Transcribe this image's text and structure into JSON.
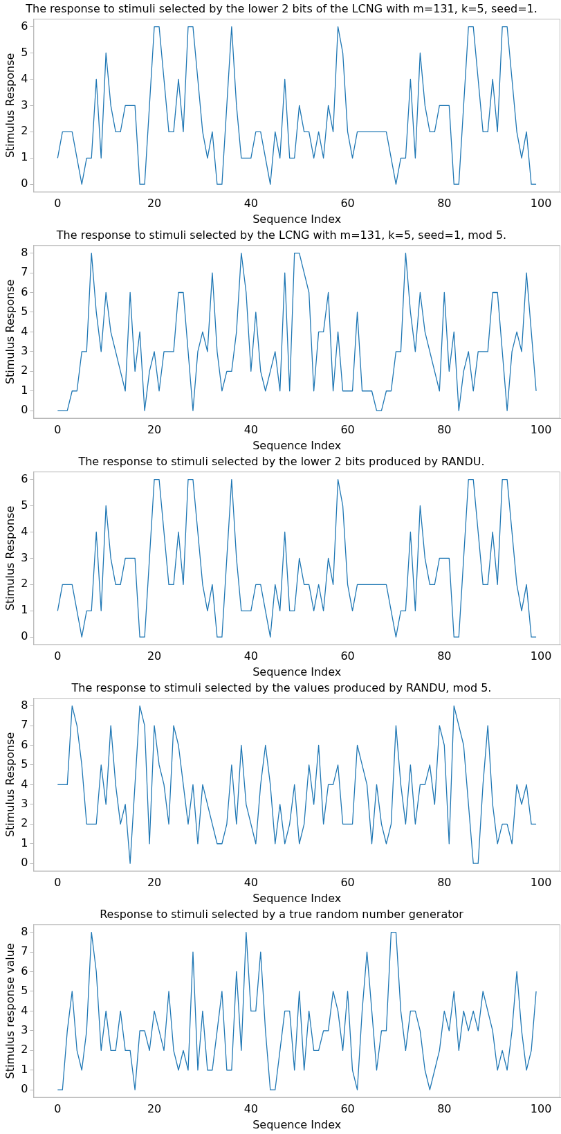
{
  "chart_data": [
    {
      "type": "line",
      "title": "The response to stimuli selected by the lower 2 bits of the LCNG with m=131, k=5, seed=1.",
      "x": [
        0,
        1,
        2,
        3,
        4,
        5,
        6,
        7,
        8,
        9,
        10,
        11,
        12,
        13,
        14,
        15,
        16,
        17,
        18,
        19,
        20,
        21,
        22,
        23,
        24,
        25,
        26,
        27,
        28,
        29,
        30,
        31,
        32,
        33,
        34,
        35,
        36,
        37,
        38,
        39,
        40,
        41,
        42,
        43,
        44,
        45,
        46,
        47,
        48,
        49,
        50,
        51,
        52,
        53,
        54,
        55,
        56,
        57,
        58,
        59,
        60,
        61,
        62,
        63,
        64,
        65,
        66,
        67,
        68,
        69,
        70,
        71,
        72,
        73,
        74,
        75,
        76,
        77,
        78,
        79,
        80,
        81,
        82,
        83,
        84,
        85,
        86,
        87,
        88,
        89,
        90,
        91,
        92,
        93,
        94,
        95,
        96,
        97,
        98,
        99
      ],
      "xlabel": "Sequence Index",
      "ylabel": "Stimulus Response",
      "color": "#1f77b4",
      "xlim": [
        -5,
        104
      ],
      "xticks": [
        0,
        20,
        40,
        60,
        80,
        100
      ],
      "ylim": [
        -0.3,
        6.3
      ],
      "yticks": [
        0,
        1,
        2,
        3,
        4,
        5,
        6
      ],
      "values": [
        1,
        2,
        2,
        2,
        1,
        0,
        1,
        1,
        4,
        1,
        5,
        3,
        2,
        2,
        3,
        3,
        3,
        0,
        0,
        3,
        6,
        6,
        4,
        2,
        2,
        4,
        2,
        6,
        6,
        4,
        2,
        1,
        2,
        0,
        0,
        3,
        6,
        3,
        1,
        1,
        1,
        2,
        2,
        1,
        0,
        2,
        1,
        4,
        1,
        1,
        3,
        2,
        2,
        1,
        2,
        1,
        3,
        2,
        6,
        5,
        2,
        1,
        2,
        2,
        2,
        2,
        2,
        2,
        2,
        1,
        0,
        1,
        1,
        4,
        1,
        5,
        3,
        2,
        2,
        3,
        3,
        3,
        0,
        0,
        3,
        6,
        6,
        4,
        2,
        2,
        4,
        2,
        6,
        6,
        4,
        2,
        1,
        2,
        0,
        0
      ]
    },
    {
      "type": "line",
      "title": "The response to stimuli selected by the LCNG with m=131, k=5, seed=1, mod 5.",
      "x": [
        0,
        1,
        2,
        3,
        4,
        5,
        6,
        7,
        8,
        9,
        10,
        11,
        12,
        13,
        14,
        15,
        16,
        17,
        18,
        19,
        20,
        21,
        22,
        23,
        24,
        25,
        26,
        27,
        28,
        29,
        30,
        31,
        32,
        33,
        34,
        35,
        36,
        37,
        38,
        39,
        40,
        41,
        42,
        43,
        44,
        45,
        46,
        47,
        48,
        49,
        50,
        51,
        52,
        53,
        54,
        55,
        56,
        57,
        58,
        59,
        60,
        61,
        62,
        63,
        64,
        65,
        66,
        67,
        68,
        69,
        70,
        71,
        72,
        73,
        74,
        75,
        76,
        77,
        78,
        79,
        80,
        81,
        82,
        83,
        84,
        85,
        86,
        87,
        88,
        89,
        90,
        91,
        92,
        93,
        94,
        95,
        96,
        97,
        98,
        99
      ],
      "xlabel": "Sequence Index",
      "ylabel": "Stimulus Response",
      "color": "#1f77b4",
      "xlim": [
        -5,
        104
      ],
      "xticks": [
        0,
        20,
        40,
        60,
        80,
        100
      ],
      "ylim": [
        -0.4,
        8.4
      ],
      "yticks": [
        0,
        1,
        2,
        3,
        4,
        5,
        6,
        7,
        8
      ],
      "values": [
        0,
        0,
        0,
        1,
        1,
        3,
        3,
        8,
        5,
        3,
        6,
        4,
        3,
        2,
        1,
        6,
        2,
        4,
        0,
        2,
        3,
        1,
        3,
        3,
        3,
        6,
        6,
        3,
        0,
        3,
        4,
        3,
        7,
        3,
        1,
        2,
        2,
        4,
        8,
        6,
        2,
        5,
        2,
        1,
        2,
        3,
        1,
        7,
        1,
        8,
        8,
        7,
        6,
        1,
        4,
        4,
        6,
        1,
        4,
        1,
        1,
        1,
        5,
        1,
        1,
        1,
        0,
        0,
        1,
        1,
        3,
        3,
        8,
        5,
        3,
        6,
        4,
        3,
        2,
        1,
        6,
        2,
        4,
        0,
        2,
        3,
        1,
        3,
        3,
        3,
        6,
        6,
        3,
        0,
        3,
        4,
        3,
        7,
        4,
        1
      ]
    },
    {
      "type": "line",
      "title": "The response to stimuli selected by the lower 2 bits produced by RANDU.",
      "x": [
        0,
        1,
        2,
        3,
        4,
        5,
        6,
        7,
        8,
        9,
        10,
        11,
        12,
        13,
        14,
        15,
        16,
        17,
        18,
        19,
        20,
        21,
        22,
        23,
        24,
        25,
        26,
        27,
        28,
        29,
        30,
        31,
        32,
        33,
        34,
        35,
        36,
        37,
        38,
        39,
        40,
        41,
        42,
        43,
        44,
        45,
        46,
        47,
        48,
        49,
        50,
        51,
        52,
        53,
        54,
        55,
        56,
        57,
        58,
        59,
        60,
        61,
        62,
        63,
        64,
        65,
        66,
        67,
        68,
        69,
        70,
        71,
        72,
        73,
        74,
        75,
        76,
        77,
        78,
        79,
        80,
        81,
        82,
        83,
        84,
        85,
        86,
        87,
        88,
        89,
        90,
        91,
        92,
        93,
        94,
        95,
        96,
        97,
        98,
        99
      ],
      "xlabel": "Sequence Index",
      "ylabel": "Stimulus Response",
      "color": "#1f77b4",
      "xlim": [
        -5,
        104
      ],
      "xticks": [
        0,
        20,
        40,
        60,
        80,
        100
      ],
      "ylim": [
        -0.3,
        6.3
      ],
      "yticks": [
        0,
        1,
        2,
        3,
        4,
        5,
        6
      ],
      "values": [
        1,
        2,
        2,
        2,
        1,
        0,
        1,
        1,
        4,
        1,
        5,
        3,
        2,
        2,
        3,
        3,
        3,
        0,
        0,
        3,
        6,
        6,
        4,
        2,
        2,
        4,
        2,
        6,
        6,
        4,
        2,
        1,
        2,
        0,
        0,
        3,
        6,
        3,
        1,
        1,
        1,
        2,
        2,
        1,
        0,
        2,
        1,
        4,
        1,
        1,
        3,
        2,
        2,
        1,
        2,
        1,
        3,
        2,
        6,
        5,
        2,
        1,
        2,
        2,
        2,
        2,
        2,
        2,
        2,
        1,
        0,
        1,
        1,
        4,
        1,
        5,
        3,
        2,
        2,
        3,
        3,
        3,
        0,
        0,
        3,
        6,
        6,
        4,
        2,
        2,
        4,
        2,
        6,
        6,
        4,
        2,
        1,
        2,
        0,
        0
      ]
    },
    {
      "type": "line",
      "title": "The response to stimuli selected by the values produced by RANDU, mod 5.",
      "x": [
        0,
        1,
        2,
        3,
        4,
        5,
        6,
        7,
        8,
        9,
        10,
        11,
        12,
        13,
        14,
        15,
        16,
        17,
        18,
        19,
        20,
        21,
        22,
        23,
        24,
        25,
        26,
        27,
        28,
        29,
        30,
        31,
        32,
        33,
        34,
        35,
        36,
        37,
        38,
        39,
        40,
        41,
        42,
        43,
        44,
        45,
        46,
        47,
        48,
        49,
        50,
        51,
        52,
        53,
        54,
        55,
        56,
        57,
        58,
        59,
        60,
        61,
        62,
        63,
        64,
        65,
        66,
        67,
        68,
        69,
        70,
        71,
        72,
        73,
        74,
        75,
        76,
        77,
        78,
        79,
        80,
        81,
        82,
        83,
        84,
        85,
        86,
        87,
        88,
        89,
        90,
        91,
        92,
        93,
        94,
        95,
        96,
        97,
        98,
        99
      ],
      "xlabel": "Sequence Index",
      "ylabel": "Stimulus Response",
      "color": "#1f77b4",
      "xlim": [
        -5,
        104
      ],
      "xticks": [
        0,
        20,
        40,
        60,
        80,
        100
      ],
      "ylim": [
        -0.4,
        8.4
      ],
      "yticks": [
        0,
        1,
        2,
        3,
        4,
        5,
        6,
        7,
        8
      ],
      "values": [
        4,
        4,
        4,
        8,
        7,
        5,
        2,
        2,
        2,
        5,
        3,
        7,
        4,
        2,
        3,
        0,
        4,
        8,
        7,
        1,
        7,
        5,
        4,
        2,
        7,
        6,
        4,
        2,
        4,
        1,
        4,
        3,
        2,
        1,
        1,
        2,
        5,
        2,
        6,
        3,
        2,
        1,
        4,
        6,
        4,
        1,
        3,
        1,
        2,
        4,
        1,
        2,
        5,
        3,
        6,
        2,
        4,
        4,
        5,
        2,
        2,
        2,
        6,
        5,
        4,
        1,
        4,
        2,
        1,
        2,
        7,
        4,
        2,
        5,
        2,
        4,
        4,
        5,
        3,
        7,
        6,
        1,
        8,
        7,
        6,
        3,
        0,
        0,
        4,
        7,
        3,
        1,
        2,
        2,
        1,
        4,
        3,
        4,
        2,
        2
      ]
    },
    {
      "type": "line",
      "title": "Response to stimuli selected by a true random number generator",
      "x": [
        0,
        1,
        2,
        3,
        4,
        5,
        6,
        7,
        8,
        9,
        10,
        11,
        12,
        13,
        14,
        15,
        16,
        17,
        18,
        19,
        20,
        21,
        22,
        23,
        24,
        25,
        26,
        27,
        28,
        29,
        30,
        31,
        32,
        33,
        34,
        35,
        36,
        37,
        38,
        39,
        40,
        41,
        42,
        43,
        44,
        45,
        46,
        47,
        48,
        49,
        50,
        51,
        52,
        53,
        54,
        55,
        56,
        57,
        58,
        59,
        60,
        61,
        62,
        63,
        64,
        65,
        66,
        67,
        68,
        69,
        70,
        71,
        72,
        73,
        74,
        75,
        76,
        77,
        78,
        79,
        80,
        81,
        82,
        83,
        84,
        85,
        86,
        87,
        88,
        89,
        90,
        91,
        92,
        93,
        94,
        95,
        96,
        97,
        98,
        99
      ],
      "xlabel": "Sequence Index",
      "ylabel": "Stimulus response value",
      "color": "#1f77b4",
      "xlim": [
        -5,
        104
      ],
      "xticks": [
        0,
        20,
        40,
        60,
        80,
        100
      ],
      "ylim": [
        -0.4,
        8.4
      ],
      "yticks": [
        0,
        1,
        2,
        3,
        4,
        5,
        6,
        7,
        8
      ],
      "values": [
        0,
        0,
        3,
        5,
        2,
        1,
        3,
        8,
        6,
        2,
        4,
        2,
        2,
        4,
        2,
        2,
        0,
        3,
        3,
        2,
        4,
        3,
        2,
        5,
        2,
        1,
        2,
        1,
        7,
        1,
        4,
        1,
        1,
        3,
        5,
        1,
        1,
        6,
        2,
        8,
        4,
        4,
        7,
        3,
        0,
        0,
        2,
        4,
        4,
        1,
        5,
        1,
        4,
        2,
        2,
        3,
        3,
        5,
        4,
        2,
        5,
        1,
        0,
        4,
        7,
        4,
        1,
        3,
        3,
        8,
        8,
        4,
        2,
        4,
        4,
        3,
        1,
        0,
        1,
        2,
        4,
        3,
        5,
        2,
        4,
        3,
        4,
        3,
        5,
        4,
        3,
        1,
        2,
        1,
        3,
        6,
        3,
        1,
        2,
        5
      ]
    }
  ]
}
